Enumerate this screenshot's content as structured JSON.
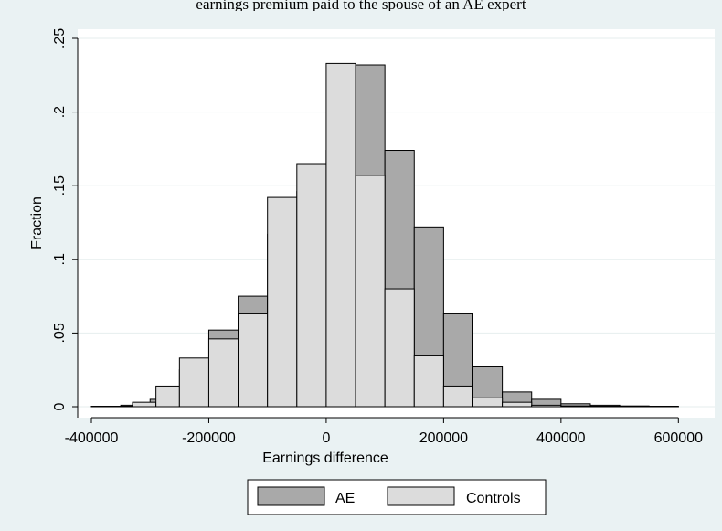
{
  "caption": "earnings premium paid to the spouse of an AE expert",
  "chart_data": {
    "type": "bar",
    "xlabel": "Earnings difference",
    "ylabel": "Fraction",
    "xlim": [
      -400000,
      640000
    ],
    "ylim": [
      0,
      0.25
    ],
    "xticks": [
      {
        "value": -400000,
        "label": "-400000"
      },
      {
        "value": -200000,
        "label": "-200000"
      },
      {
        "value": 0,
        "label": "0"
      },
      {
        "value": 200000,
        "label": "200000"
      },
      {
        "value": 400000,
        "label": "400000"
      },
      {
        "value": 600000,
        "label": "600000"
      }
    ],
    "yticks": [
      {
        "value": 0,
        "label": "0"
      },
      {
        "value": 0.05,
        "label": ".05"
      },
      {
        "value": 0.1,
        "label": ".1"
      },
      {
        "value": 0.15,
        "label": ".15"
      },
      {
        "value": 0.2,
        "label": ".2"
      },
      {
        "value": 0.25,
        "label": ".25"
      }
    ],
    "grid": true,
    "legend": "bottom",
    "colors": {
      "AE": "#a9a9a9",
      "Controls": "#dcdcdc",
      "outline": "#000000",
      "plot_bg": "#ffffff",
      "frame_bg": "#eaf2f3",
      "grid": "#e6eeee"
    },
    "series": [
      {
        "name": "AE",
        "bins": [
          [
            -400000,
            -350000,
            0.0
          ],
          [
            -350000,
            -300000,
            0.001
          ],
          [
            -300000,
            -250000,
            0.005
          ],
          [
            -250000,
            -200000,
            0.025
          ],
          [
            -200000,
            -150000,
            0.052
          ],
          [
            -150000,
            -100000,
            0.075
          ],
          [
            -100000,
            -50000,
            0.117
          ],
          [
            -50000,
            0,
            0.146
          ],
          [
            0,
            50000,
            0.174
          ],
          [
            50000,
            100000,
            0.232
          ],
          [
            100000,
            150000,
            0.174
          ],
          [
            150000,
            200000,
            0.122
          ],
          [
            200000,
            250000,
            0.063
          ],
          [
            250000,
            300000,
            0.027
          ],
          [
            300000,
            350000,
            0.01
          ],
          [
            350000,
            400000,
            0.005
          ],
          [
            400000,
            450000,
            0.002
          ],
          [
            450000,
            500000,
            0.001
          ],
          [
            500000,
            550000,
            0.0005
          ],
          [
            550000,
            600000,
            0.0003
          ],
          [
            600000,
            640000,
            0.0
          ]
        ]
      },
      {
        "name": "Controls",
        "bins": [
          [
            -400000,
            -330000,
            0.0003
          ],
          [
            -330000,
            -290000,
            0.003
          ],
          [
            -290000,
            -250000,
            0.014
          ],
          [
            -250000,
            -200000,
            0.033
          ],
          [
            -200000,
            -150000,
            0.046
          ],
          [
            -150000,
            -100000,
            0.063
          ],
          [
            -100000,
            -50000,
            0.142
          ],
          [
            -50000,
            0,
            0.165
          ],
          [
            0,
            50000,
            0.233
          ],
          [
            50000,
            100000,
            0.157
          ],
          [
            100000,
            150000,
            0.08
          ],
          [
            150000,
            200000,
            0.035
          ],
          [
            200000,
            250000,
            0.014
          ],
          [
            250000,
            300000,
            0.006
          ],
          [
            300000,
            350000,
            0.003
          ],
          [
            350000,
            400000,
            0.001
          ],
          [
            400000,
            450000,
            0.0005
          ],
          [
            450000,
            500000,
            0.0003
          ],
          [
            500000,
            550000,
            0.0002
          ],
          [
            550000,
            600000,
            0.0001
          ],
          [
            600000,
            640000,
            0.0
          ]
        ]
      }
    ]
  }
}
